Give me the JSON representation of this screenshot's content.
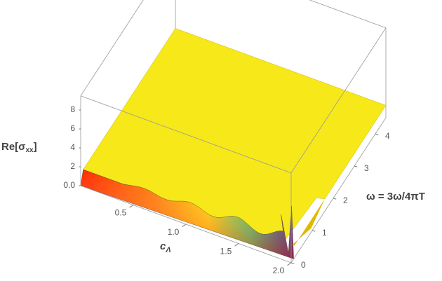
{
  "chart_data": {
    "type": "surface3d",
    "x_label": [
      "c",
      "Λ"
    ],
    "y_label": "ω = 3ω/4πT",
    "z_label": [
      "Re[σ",
      "xx",
      "]"
    ],
    "xlim": [
      0,
      2
    ],
    "xticks": [
      0.5,
      {
        "value": 1,
        "label": "1.0"
      },
      1.5,
      {
        "value": 2,
        "label": "2.0"
      }
    ],
    "ylim": [
      0,
      4.5
    ],
    "yticks": [
      0,
      1,
      2,
      3,
      4
    ],
    "zlim": [
      0,
      9.5
    ],
    "zticks": [
      {
        "value": 0,
        "label": "0.0"
      },
      2,
      4,
      6,
      8
    ],
    "color": "#f7e81a"
  }
}
